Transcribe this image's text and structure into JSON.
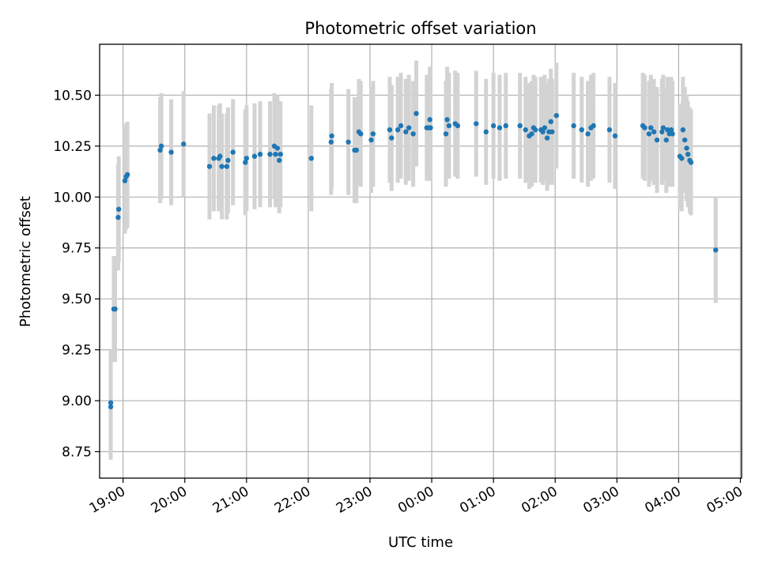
{
  "chart_data": {
    "type": "scatter",
    "title": "Photometric offset variation",
    "xlabel": "UTC time",
    "ylabel": "Photometric offset",
    "grid": true,
    "x_range_hours": [
      18.62,
      29.02
    ],
    "ylim": [
      8.62,
      10.75
    ],
    "y_ticks": [
      8.75,
      9.0,
      9.25,
      9.5,
      9.75,
      10.0,
      10.25,
      10.5
    ],
    "y_tick_labels": [
      "8.75",
      "9.00",
      "9.25",
      "9.50",
      "9.75",
      "10.00",
      "10.25",
      "10.50"
    ],
    "x_ticks_hours": [
      19,
      20,
      21,
      22,
      23,
      24,
      25,
      26,
      27,
      28,
      29
    ],
    "x_tick_labels": [
      "19:00",
      "20:00",
      "21:00",
      "22:00",
      "23:00",
      "00:00",
      "01:00",
      "02:00",
      "03:00",
      "04:00",
      "05:00"
    ],
    "series": [
      {
        "name": "offset",
        "error": 0.26,
        "marker_color": "#1f77b4",
        "errorbar_color": "#d3d3d3",
        "points": [
          {
            "t": 18.8,
            "v": 8.99
          },
          {
            "t": 18.8,
            "v": 8.97
          },
          {
            "t": 18.87,
            "v": 9.45
          },
          {
            "t": 18.85,
            "v": 9.45
          },
          {
            "t": 18.92,
            "v": 9.9
          },
          {
            "t": 18.93,
            "v": 9.94
          },
          {
            "t": 19.03,
            "v": 10.08
          },
          {
            "t": 19.05,
            "v": 10.1
          },
          {
            "t": 19.07,
            "v": 10.11
          },
          {
            "t": 19.6,
            "v": 10.23
          },
          {
            "t": 19.62,
            "v": 10.25
          },
          {
            "t": 19.78,
            "v": 10.22
          },
          {
            "t": 19.98,
            "v": 10.26
          },
          {
            "t": 20.4,
            "v": 10.15
          },
          {
            "t": 20.47,
            "v": 10.19
          },
          {
            "t": 20.55,
            "v": 10.19
          },
          {
            "t": 20.57,
            "v": 10.2
          },
          {
            "t": 20.6,
            "v": 10.15
          },
          {
            "t": 20.68,
            "v": 10.15
          },
          {
            "t": 20.7,
            "v": 10.18
          },
          {
            "t": 20.78,
            "v": 10.22
          },
          {
            "t": 20.98,
            "v": 10.17
          },
          {
            "t": 21.0,
            "v": 10.19
          },
          {
            "t": 21.13,
            "v": 10.2
          },
          {
            "t": 21.22,
            "v": 10.21
          },
          {
            "t": 21.38,
            "v": 10.21
          },
          {
            "t": 21.45,
            "v": 10.25
          },
          {
            "t": 21.47,
            "v": 10.21
          },
          {
            "t": 21.5,
            "v": 10.24
          },
          {
            "t": 21.53,
            "v": 10.18
          },
          {
            "t": 21.55,
            "v": 10.21
          },
          {
            "t": 22.05,
            "v": 10.19
          },
          {
            "t": 22.37,
            "v": 10.27
          },
          {
            "t": 22.38,
            "v": 10.3
          },
          {
            "t": 22.65,
            "v": 10.27
          },
          {
            "t": 22.75,
            "v": 10.23
          },
          {
            "t": 22.78,
            "v": 10.23
          },
          {
            "t": 22.82,
            "v": 10.32
          },
          {
            "t": 22.85,
            "v": 10.31
          },
          {
            "t": 23.02,
            "v": 10.28
          },
          {
            "t": 23.05,
            "v": 10.31
          },
          {
            "t": 23.32,
            "v": 10.33
          },
          {
            "t": 23.35,
            "v": 10.29
          },
          {
            "t": 23.45,
            "v": 10.33
          },
          {
            "t": 23.5,
            "v": 10.35
          },
          {
            "t": 23.58,
            "v": 10.32
          },
          {
            "t": 23.63,
            "v": 10.34
          },
          {
            "t": 23.7,
            "v": 10.31
          },
          {
            "t": 23.75,
            "v": 10.41
          },
          {
            "t": 23.92,
            "v": 10.34
          },
          {
            "t": 23.95,
            "v": 10.34
          },
          {
            "t": 23.97,
            "v": 10.38
          },
          {
            "t": 23.98,
            "v": 10.34
          },
          {
            "t": 24.23,
            "v": 10.31
          },
          {
            "t": 24.25,
            "v": 10.38
          },
          {
            "t": 24.28,
            "v": 10.35
          },
          {
            "t": 24.38,
            "v": 10.36
          },
          {
            "t": 24.42,
            "v": 10.35
          },
          {
            "t": 24.72,
            "v": 10.36
          },
          {
            "t": 24.88,
            "v": 10.32
          },
          {
            "t": 25.0,
            "v": 10.35
          },
          {
            "t": 25.1,
            "v": 10.34
          },
          {
            "t": 25.2,
            "v": 10.35
          },
          {
            "t": 25.43,
            "v": 10.35
          },
          {
            "t": 25.52,
            "v": 10.33
          },
          {
            "t": 25.58,
            "v": 10.3
          },
          {
            "t": 25.62,
            "v": 10.31
          },
          {
            "t": 25.65,
            "v": 10.34
          },
          {
            "t": 25.68,
            "v": 10.33
          },
          {
            "t": 25.77,
            "v": 10.33
          },
          {
            "t": 25.8,
            "v": 10.32
          },
          {
            "t": 25.83,
            "v": 10.34
          },
          {
            "t": 25.87,
            "v": 10.29
          },
          {
            "t": 25.9,
            "v": 10.32
          },
          {
            "t": 25.93,
            "v": 10.37
          },
          {
            "t": 25.95,
            "v": 10.32
          },
          {
            "t": 26.02,
            "v": 10.4
          },
          {
            "t": 26.3,
            "v": 10.35
          },
          {
            "t": 26.43,
            "v": 10.33
          },
          {
            "t": 26.53,
            "v": 10.31
          },
          {
            "t": 26.58,
            "v": 10.34
          },
          {
            "t": 26.62,
            "v": 10.35
          },
          {
            "t": 26.88,
            "v": 10.33
          },
          {
            "t": 26.97,
            "v": 10.3
          },
          {
            "t": 27.42,
            "v": 10.35
          },
          {
            "t": 27.45,
            "v": 10.34
          },
          {
            "t": 27.52,
            "v": 10.31
          },
          {
            "t": 27.55,
            "v": 10.34
          },
          {
            "t": 27.6,
            "v": 10.32
          },
          {
            "t": 27.65,
            "v": 10.28
          },
          {
            "t": 27.73,
            "v": 10.32
          },
          {
            "t": 27.75,
            "v": 10.34
          },
          {
            "t": 27.8,
            "v": 10.28
          },
          {
            "t": 27.82,
            "v": 10.33
          },
          {
            "t": 27.85,
            "v": 10.31
          },
          {
            "t": 27.88,
            "v": 10.33
          },
          {
            "t": 27.9,
            "v": 10.31
          },
          {
            "t": 28.02,
            "v": 10.2
          },
          {
            "t": 28.05,
            "v": 10.19
          },
          {
            "t": 28.07,
            "v": 10.33
          },
          {
            "t": 28.1,
            "v": 10.28
          },
          {
            "t": 28.13,
            "v": 10.24
          },
          {
            "t": 28.15,
            "v": 10.21
          },
          {
            "t": 28.18,
            "v": 10.18
          },
          {
            "t": 28.2,
            "v": 10.17
          },
          {
            "t": 28.6,
            "v": 9.74
          }
        ]
      }
    ]
  }
}
